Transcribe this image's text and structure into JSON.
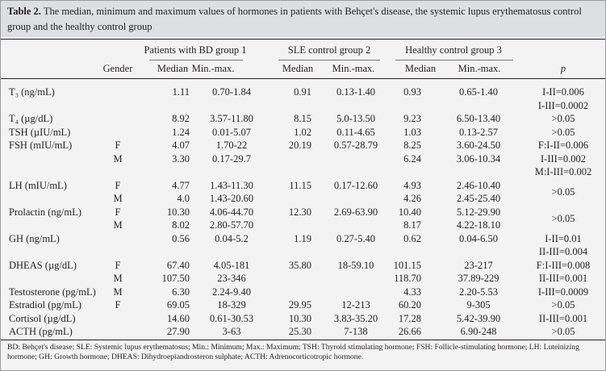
{
  "title": {
    "label": "Table 2.",
    "text": "The median, minimum and maximum values of hormones in patients with Behçet's disease, the systemic lupus erythematosus control group and the healthy control group"
  },
  "table": {
    "group_headers": [
      "Patients with BD group 1",
      "SLE control group 2",
      "Healthy control group 3"
    ],
    "columns": [
      "Gender",
      "Median",
      "Min.-max.",
      "Median",
      "Min.-max.",
      "Median",
      "Min.-max.",
      "p"
    ],
    "rows": [
      {
        "hormone": "T₃ (ng/mL)",
        "entries": [
          {
            "values": [
              "1.11",
              "0.70-1.84",
              "0.91",
              "0.13-1.40",
              "0.93",
              "0.65-1.40"
            ]
          }
        ],
        "p": [
          "I-II=0.006",
          "I-III=0.0002"
        ]
      },
      {
        "hormone": "T₄ (µg/dL)",
        "entries": [
          {
            "values": [
              "8.92",
              "3.57-11.80",
              "8.15",
              "5.0-13.50",
              "9.23",
              "6.50-13.40"
            ]
          }
        ],
        "p": [
          ">0.05"
        ]
      },
      {
        "hormone": "TSH (µIU/mL)",
        "entries": [
          {
            "values": [
              "1.24",
              "0.01-5.07",
              "1.02",
              "0.11-4.65",
              "1.03",
              "0.13-2.57"
            ]
          }
        ],
        "p": [
          ">0.05"
        ]
      },
      {
        "hormone": "FSH (mIU/mL)",
        "entries": [
          {
            "gender": "F",
            "values": [
              "4.07",
              "1.70-22",
              "20.19",
              "0.57-28.79",
              "8.25",
              "3.60-24.50"
            ]
          },
          {
            "gender": "M",
            "values": [
              "3.30",
              "0.17-29.7",
              null,
              null,
              "6.24",
              "3.06-10.34"
            ]
          }
        ],
        "p": [
          "F:I-II=0.006",
          "I-III=0.002",
          "M:I-III=0.002"
        ]
      },
      {
        "hormone": "LH (mIU/mL)",
        "entries": [
          {
            "gender": "F",
            "values": [
              "4.77",
              "1.43-11.30",
              "11.15",
              "0.17-12.60",
              "4.93",
              "2.46-10.40"
            ]
          },
          {
            "gender": "M",
            "values": [
              "4.0",
              "1.43-20.60",
              null,
              null,
              "4.26",
              "2.45-25.40"
            ]
          }
        ],
        "p": [
          ">0.05"
        ]
      },
      {
        "hormone": "Prolactin (ng/mL)",
        "entries": [
          {
            "gender": "F",
            "values": [
              "10.30",
              "4.06-44.70",
              "12.30",
              "2.69-63.90",
              "10.40",
              "5.12-29.90"
            ]
          },
          {
            "gender": "M",
            "values": [
              "8.02",
              "2.80-57.70",
              null,
              null,
              "8.17",
              "4.22-18.10"
            ]
          }
        ],
        "p": [
          ">0.05"
        ]
      },
      {
        "hormone": "GH (ng/mL)",
        "entries": [
          {
            "values": [
              "0.56",
              "0.04-5.2",
              "1.19",
              "0.27-5.40",
              "0.62",
              "0.04-6.50"
            ]
          }
        ],
        "p": [
          "I-II=0.01",
          "II-III=0.004"
        ]
      },
      {
        "hormone": "DHEAS (µg/dL)",
        "entries": [
          {
            "gender": "F",
            "values": [
              "67.40",
              "4.05-181",
              "35.80",
              "18-59.10",
              "101.15",
              "23-217"
            ]
          },
          {
            "gender": "M",
            "values": [
              "107.50",
              "23-346",
              null,
              null,
              "118.70",
              "37.89-229"
            ]
          }
        ],
        "p": [
          "F:I-III=0.008",
          "II-III=0.001"
        ]
      },
      {
        "hormone": "Testosterone (pg/mL)",
        "entries": [
          {
            "gender": "M",
            "values": [
              "6.30",
              "2.24-9.40",
              null,
              null,
              "4.33",
              "2.20-5.53"
            ]
          }
        ],
        "p": [
          "I-III=0.0009"
        ]
      },
      {
        "hormone": "Estradiol (pg/mL)",
        "entries": [
          {
            "gender": "F",
            "values": [
              "69.05",
              "18-329",
              "29.95",
              "12-213",
              "60.20",
              "9-305"
            ]
          }
        ],
        "p": [
          ">0.05"
        ]
      },
      {
        "hormone": "Cortisol (µg/dL)",
        "entries": [
          {
            "values": [
              "14.60",
              "0.61-30.53",
              "10.30",
              "3.83-35.20",
              "17.28",
              "5.42-39.90"
            ]
          }
        ],
        "p": [
          "II-III=0.001"
        ]
      },
      {
        "hormone": "ACTH (pg/mL)",
        "entries": [
          {
            "values": [
              "27.90",
              "3-63",
              "25.30",
              "7-138",
              "26.66",
              "6.90-248"
            ]
          }
        ],
        "p": [
          ">0.05"
        ]
      }
    ]
  },
  "footnote": "BD: Behçet's disease; SLE: Systemic lupus erythematosus; Min.: Minimum; Max.: Maximum; TSH: Thyroid stimulating hormone; FSH: Follicle-stimulating hormone; LH: Luteinizing hormone; GH: Growth hormone; DHEAS: Dihydroepiandrosteron sulphate; ACTH: Adrenocorticotropic hormone."
}
